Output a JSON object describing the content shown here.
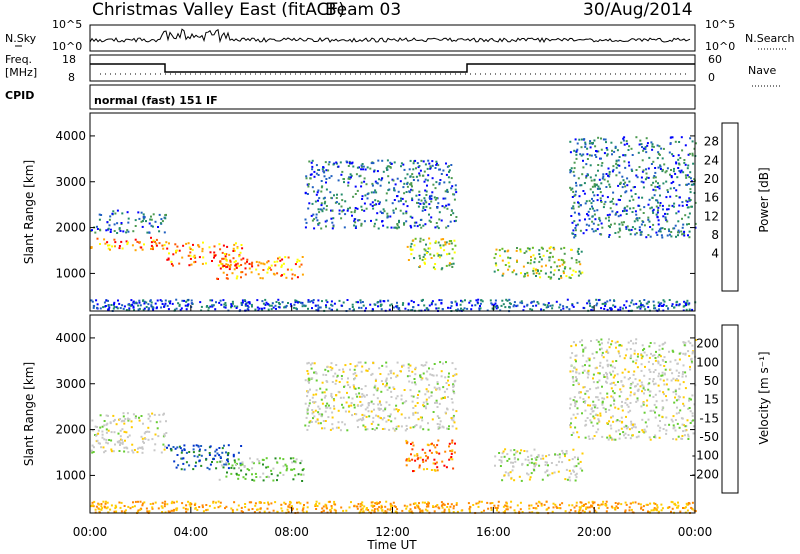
{
  "header": {
    "station": "Christmas Valley East (fitACF)",
    "beam": "Beam 03",
    "date": "30/Aug/2014"
  },
  "status_panels": {
    "nsky_label": "N.Sky",
    "nsky_ticks": [
      "10^5",
      "10^0"
    ],
    "nsearch_label": "N.Search",
    "nsearch_ticks": [
      "10^5",
      "10^0"
    ],
    "freq_label_1": "Freq.",
    "freq_label_2": "[MHz]",
    "freq_ticks": [
      "18",
      "8"
    ],
    "nave_label": "Nave",
    "nave_ticks": [
      "60",
      "0"
    ],
    "cpid_label": "CPID",
    "cpid_text": "normal (fast) 151 IF"
  },
  "chart_data": [
    {
      "type": "heatmap",
      "name": "power",
      "ylabel": "Slant Range [km]",
      "xlabel": "Time UT",
      "x_ticks": [
        "00:00",
        "04:00",
        "08:00",
        "12:00",
        "16:00",
        "20:00",
        "00:00"
      ],
      "y_ticks": [
        1000,
        2000,
        3000,
        4000
      ],
      "xlim_hours": [
        0,
        24
      ],
      "ylim_km": [
        180,
        4500
      ],
      "colorbar": {
        "label": "Power [dB]",
        "ticks": [
          "28",
          "24",
          "20",
          "16",
          "12",
          "8",
          "4"
        ],
        "colors": [
          "#0000ff",
          "#1f5fc0",
          "#228b6b",
          "#4c9a50",
          "#66bb22",
          "#ffff00",
          "#ffa500",
          "#ff5500",
          "#ff0000"
        ]
      },
      "features": [
        {
          "t0": 0.0,
          "t1": 3.0,
          "r0": 1500,
          "r1": 1800,
          "level": "high"
        },
        {
          "t0": 0.0,
          "t1": 3.0,
          "r0": 1900,
          "r1": 2400,
          "level": "low"
        },
        {
          "t0": 3.0,
          "t1": 6.0,
          "r0": 1150,
          "r1": 1700,
          "level": "high"
        },
        {
          "t0": 5.0,
          "t1": 8.5,
          "r0": 900,
          "r1": 1400,
          "level": "high"
        },
        {
          "t0": 8.5,
          "t1": 14.5,
          "r0": 2000,
          "r1": 3500,
          "level": "low"
        },
        {
          "t0": 12.5,
          "t1": 14.5,
          "r0": 1100,
          "r1": 1800,
          "level": "mid"
        },
        {
          "t0": 16.0,
          "t1": 19.5,
          "r0": 900,
          "r1": 1600,
          "level": "mid"
        },
        {
          "t0": 19.0,
          "t1": 24.0,
          "r0": 1800,
          "r1": 4000,
          "level": "low"
        }
      ]
    },
    {
      "type": "heatmap",
      "name": "velocity",
      "ylabel": "Slant Range [km]",
      "xlabel": "Time UT",
      "x_ticks": [
        "00:00",
        "04:00",
        "08:00",
        "12:00",
        "16:00",
        "20:00",
        "00:00"
      ],
      "y_ticks": [
        1000,
        2000,
        3000,
        4000
      ],
      "xlim_hours": [
        0,
        24
      ],
      "ylim_km": [
        180,
        4500
      ],
      "colorbar": {
        "label": "Velocity [m s⁻¹]",
        "ticks": [
          "200",
          "100",
          "50",
          "15",
          "-15",
          "-50",
          "-100",
          "-200"
        ],
        "colors": [
          "#0033cc",
          "#1f5fc0",
          "#228b22",
          "#66cc33",
          "#c8c8c8",
          "#ffcc00",
          "#ff8800",
          "#ff4400",
          "#ff0000"
        ]
      },
      "features": [
        {
          "t0": 0.0,
          "t1": 3.0,
          "r0": 1500,
          "r1": 2400,
          "level": "ground"
        },
        {
          "t0": 3.0,
          "t1": 6.0,
          "r0": 1150,
          "r1": 1700,
          "level": "toward"
        },
        {
          "t0": 5.0,
          "t1": 8.5,
          "r0": 900,
          "r1": 1400,
          "level": "slow_toward"
        },
        {
          "t0": 8.5,
          "t1": 14.5,
          "r0": 2000,
          "r1": 3500,
          "level": "ground"
        },
        {
          "t0": 12.5,
          "t1": 14.5,
          "r0": 1100,
          "r1": 1800,
          "level": "away"
        },
        {
          "t0": 16.0,
          "t1": 19.5,
          "r0": 900,
          "r1": 1600,
          "level": "ground"
        },
        {
          "t0": 19.0,
          "t1": 24.0,
          "r0": 1800,
          "r1": 4000,
          "level": "ground"
        }
      ]
    }
  ]
}
